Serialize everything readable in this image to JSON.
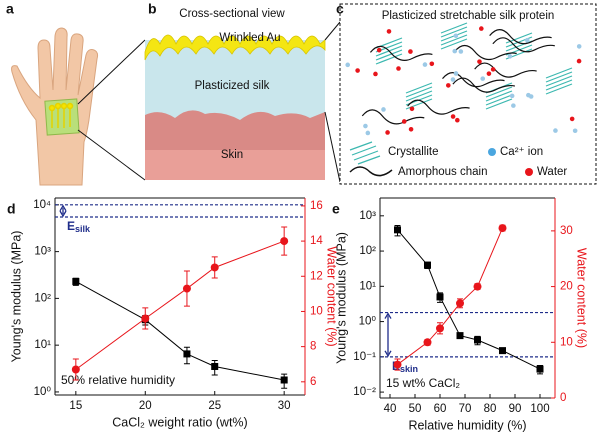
{
  "illustrations": {
    "a": {
      "label": "a"
    },
    "b": {
      "label": "b",
      "title": "Cross-sectional view",
      "layers": [
        "Wrinkled Au",
        "Plasticized silk",
        "Skin"
      ]
    },
    "c": {
      "label": "c",
      "title": "Plasticized stretchable silk protein",
      "legend": [
        "Crystallite",
        "Ca²⁺ ion",
        "Amorphous chain",
        "Water"
      ]
    }
  },
  "chart_data": [
    {
      "type": "scatter",
      "panel_label": "d",
      "xlabel": "CaCl₂ weight ratio (wt%)",
      "ylabel": "Young's modulus (MPa)",
      "y2label": "Water content (%)",
      "xlim": [
        13.5,
        31.5
      ],
      "xticks": [
        15,
        20,
        25,
        30
      ],
      "y_scale": "log",
      "ylim": [
        0.86,
        14000
      ],
      "yticks": [
        {
          "value": 1,
          "label": "10⁰"
        },
        {
          "value": 10,
          "label": "10¹"
        },
        {
          "value": 100,
          "label": "10²"
        },
        {
          "value": 1000,
          "label": "10³"
        },
        {
          "value": 10000,
          "label": "10⁴"
        }
      ],
      "y2lim": [
        5.25,
        16.45
      ],
      "y2ticks": [
        6,
        8,
        10,
        12,
        14,
        16
      ],
      "y2color": "#e8151b",
      "reference_lines": [
        10000,
        5500
      ],
      "reference_color": "#1f2d8a",
      "reference_label": {
        "text": "E",
        "sub": "silk"
      },
      "note": "50% relative humidity",
      "series": [
        {
          "color": "#000000",
          "marker": "square",
          "x": [
            15,
            20,
            23,
            25,
            30
          ],
          "values": [
            230,
            35,
            6.5,
            3.5,
            1.8
          ],
          "errors": [
            40,
            8,
            2.5,
            1.2,
            0.6
          ]
        },
        {
          "color": "#e8151b",
          "marker": "circle",
          "axis": "y2",
          "x": [
            15,
            20,
            23,
            25,
            30
          ],
          "values": [
            6.7,
            9.6,
            11.3,
            12.5,
            14
          ],
          "errors": [
            0.6,
            0.6,
            1,
            0.6,
            0.8
          ]
        }
      ]
    },
    {
      "type": "scatter",
      "panel_label": "e",
      "xlabel": "Relative humidity (%)",
      "ylabel": "Young's modulus (MPa)",
      "y2label": "Water content (%)",
      "xlim": [
        36,
        106
      ],
      "xticks": [
        40,
        50,
        60,
        70,
        80,
        90,
        100
      ],
      "y_scale": "log",
      "ylim": [
        0.0068,
        3200
      ],
      "yticks": [
        {
          "value": 0.01,
          "label": "10⁻²"
        },
        {
          "value": 0.1,
          "label": "10⁻¹"
        },
        {
          "value": 1,
          "label": "10⁰"
        },
        {
          "value": 10,
          "label": "10¹"
        },
        {
          "value": 100,
          "label": "10²"
        },
        {
          "value": 1000,
          "label": "10³"
        }
      ],
      "y2lim": [
        0,
        35.9
      ],
      "y2ticks": [
        0,
        10,
        20,
        30
      ],
      "y2color": "#e8151b",
      "reference_lines": [
        1.8,
        0.1
      ],
      "reference_color": "#1f2d8a",
      "reference_label": {
        "text": "E",
        "sub": "skin"
      },
      "note": "15 wt% CaCl₂",
      "series": [
        {
          "color": "#000000",
          "marker": "square",
          "x": [
            43,
            55,
            60,
            68,
            75,
            85,
            100
          ],
          "values": [
            400,
            40,
            5,
            0.4,
            0.3,
            0.15,
            0.045
          ],
          "errors": [
            130,
            8,
            1.5,
            0.05,
            0.08,
            0.02,
            0.012
          ]
        },
        {
          "color": "#e8151b",
          "marker": "circle",
          "axis": "y2",
          "x": [
            43,
            55,
            60,
            68,
            75,
            85
          ],
          "values": [
            6,
            10,
            12.5,
            17,
            20,
            30.5
          ],
          "errors": [
            1,
            0.5,
            1,
            0.8,
            0.5,
            0.5
          ]
        }
      ]
    }
  ]
}
